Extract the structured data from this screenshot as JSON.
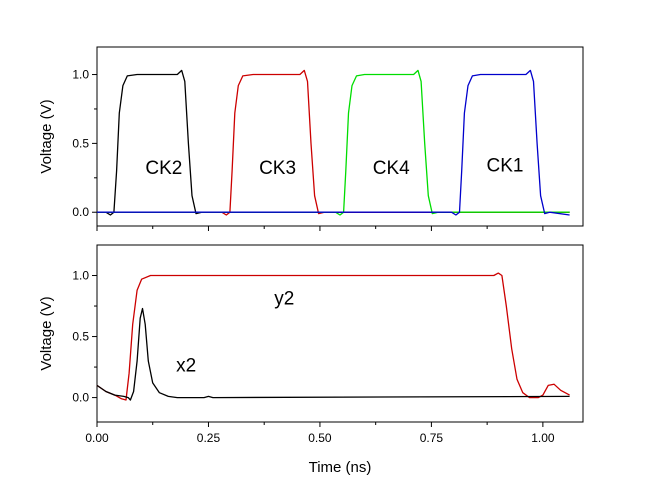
{
  "chart_data": [
    {
      "type": "line",
      "title": "",
      "xlabel": "",
      "ylabel": "Voltage (V)",
      "xlim": [
        0.0,
        1.09
      ],
      "ylim": [
        -0.1,
        1.2
      ],
      "x_ticks": [
        0.0,
        0.25,
        0.5,
        0.75,
        1.0
      ],
      "y_ticks": [
        0.0,
        0.5,
        1.0
      ],
      "y_tick_labels": [
        "0.0",
        "0.5",
        "1.0"
      ],
      "show_x_tick_labels": false,
      "grid": false,
      "legend": "none",
      "series": [
        {
          "color": "#000000",
          "points": [
            [
              0.0,
              0.0
            ],
            [
              0.02,
              0.0
            ],
            [
              0.03,
              -0.02
            ],
            [
              0.038,
              0.0
            ],
            [
              0.044,
              0.3
            ],
            [
              0.05,
              0.72
            ],
            [
              0.058,
              0.92
            ],
            [
              0.068,
              0.99
            ],
            [
              0.09,
              1.0
            ],
            [
              0.18,
              1.0
            ],
            [
              0.19,
              1.03
            ],
            [
              0.197,
              0.95
            ],
            [
              0.205,
              0.5
            ],
            [
              0.213,
              0.12
            ],
            [
              0.222,
              -0.01
            ],
            [
              0.235,
              0.0
            ],
            [
              1.06,
              0.0
            ]
          ]
        },
        {
          "color": "#cc0000",
          "points": [
            [
              0.0,
              0.0
            ],
            [
              0.28,
              0.0
            ],
            [
              0.29,
              -0.02
            ],
            [
              0.298,
              0.0
            ],
            [
              0.303,
              0.3
            ],
            [
              0.309,
              0.72
            ],
            [
              0.317,
              0.92
            ],
            [
              0.327,
              0.99
            ],
            [
              0.35,
              1.0
            ],
            [
              0.455,
              1.0
            ],
            [
              0.465,
              1.03
            ],
            [
              0.472,
              0.95
            ],
            [
              0.48,
              0.5
            ],
            [
              0.488,
              0.12
            ],
            [
              0.497,
              -0.01
            ],
            [
              0.51,
              0.0
            ],
            [
              1.06,
              0.0
            ]
          ]
        },
        {
          "color": "#00dd00",
          "points": [
            [
              0.0,
              0.0
            ],
            [
              0.535,
              0.0
            ],
            [
              0.545,
              -0.02
            ],
            [
              0.553,
              0.0
            ],
            [
              0.558,
              0.3
            ],
            [
              0.564,
              0.72
            ],
            [
              0.572,
              0.92
            ],
            [
              0.582,
              0.99
            ],
            [
              0.6,
              1.0
            ],
            [
              0.71,
              1.0
            ],
            [
              0.72,
              1.03
            ],
            [
              0.727,
              0.95
            ],
            [
              0.735,
              0.5
            ],
            [
              0.743,
              0.12
            ],
            [
              0.752,
              -0.01
            ],
            [
              0.765,
              0.0
            ],
            [
              1.06,
              0.0
            ]
          ]
        },
        {
          "color": "#0000cc",
          "points": [
            [
              0.0,
              0.0
            ],
            [
              0.795,
              0.0
            ],
            [
              0.805,
              -0.02
            ],
            [
              0.813,
              0.0
            ],
            [
              0.818,
              0.3
            ],
            [
              0.824,
              0.72
            ],
            [
              0.832,
              0.92
            ],
            [
              0.842,
              0.99
            ],
            [
              0.86,
              1.0
            ],
            [
              0.962,
              1.0
            ],
            [
              0.972,
              1.03
            ],
            [
              0.979,
              0.95
            ],
            [
              0.987,
              0.5
            ],
            [
              0.995,
              0.12
            ],
            [
              1.004,
              -0.01
            ],
            [
              1.015,
              0.0
            ],
            [
              1.06,
              -0.02
            ]
          ]
        }
      ],
      "annotations": [
        {
          "text": "CK2",
          "x": 0.15,
          "y": 0.33
        },
        {
          "text": "CK3",
          "x": 0.405,
          "y": 0.33
        },
        {
          "text": "CK4",
          "x": 0.66,
          "y": 0.33
        },
        {
          "text": "CK1",
          "x": 0.915,
          "y": 0.345
        }
      ]
    },
    {
      "type": "line",
      "title": "",
      "xlabel": "Time (ns)",
      "ylabel": "Voltage (V)",
      "xlim": [
        0.0,
        1.09
      ],
      "ylim": [
        -0.2,
        1.25
      ],
      "x_ticks": [
        0.0,
        0.25,
        0.5,
        0.75,
        1.0
      ],
      "x_tick_labels": [
        "0.00",
        "0.25",
        "0.50",
        "0.75",
        "1.00"
      ],
      "y_ticks": [
        0.0,
        0.5,
        1.0
      ],
      "y_tick_labels": [
        "0.0",
        "0.5",
        "1.0"
      ],
      "show_x_tick_labels": true,
      "grid": false,
      "legend": "none",
      "series": [
        {
          "color": "#cc0000",
          "points": [
            [
              0.0,
              0.1
            ],
            [
              0.02,
              0.05
            ],
            [
              0.04,
              0.02
            ],
            [
              0.055,
              -0.01
            ],
            [
              0.065,
              -0.02
            ],
            [
              0.072,
              0.2
            ],
            [
              0.08,
              0.6
            ],
            [
              0.09,
              0.88
            ],
            [
              0.1,
              0.97
            ],
            [
              0.12,
              1.0
            ],
            [
              0.89,
              1.0
            ],
            [
              0.9,
              1.02
            ],
            [
              0.908,
              1.0
            ],
            [
              0.918,
              0.75
            ],
            [
              0.93,
              0.4
            ],
            [
              0.942,
              0.15
            ],
            [
              0.955,
              0.04
            ],
            [
              0.97,
              0.0
            ],
            [
              0.99,
              0.0
            ],
            [
              1.0,
              0.02
            ],
            [
              1.012,
              0.1
            ],
            [
              1.025,
              0.11
            ],
            [
              1.04,
              0.06
            ],
            [
              1.06,
              0.02
            ]
          ]
        },
        {
          "color": "#000000",
          "points": [
            [
              0.0,
              0.1
            ],
            [
              0.02,
              0.05
            ],
            [
              0.04,
              0.02
            ],
            [
              0.06,
              0.01
            ],
            [
              0.07,
              0.0
            ],
            [
              0.075,
              -0.02
            ],
            [
              0.082,
              0.05
            ],
            [
              0.09,
              0.3
            ],
            [
              0.097,
              0.65
            ],
            [
              0.102,
              0.73
            ],
            [
              0.108,
              0.6
            ],
            [
              0.115,
              0.3
            ],
            [
              0.125,
              0.12
            ],
            [
              0.14,
              0.04
            ],
            [
              0.16,
              0.01
            ],
            [
              0.18,
              0.0
            ],
            [
              0.24,
              0.0
            ],
            [
              0.25,
              0.01
            ],
            [
              0.26,
              0.0
            ],
            [
              1.06,
              0.01
            ]
          ]
        }
      ],
      "annotations": [
        {
          "text": "y2",
          "x": 0.42,
          "y": 0.82
        },
        {
          "text": "x2",
          "x": 0.2,
          "y": 0.27
        }
      ]
    }
  ]
}
